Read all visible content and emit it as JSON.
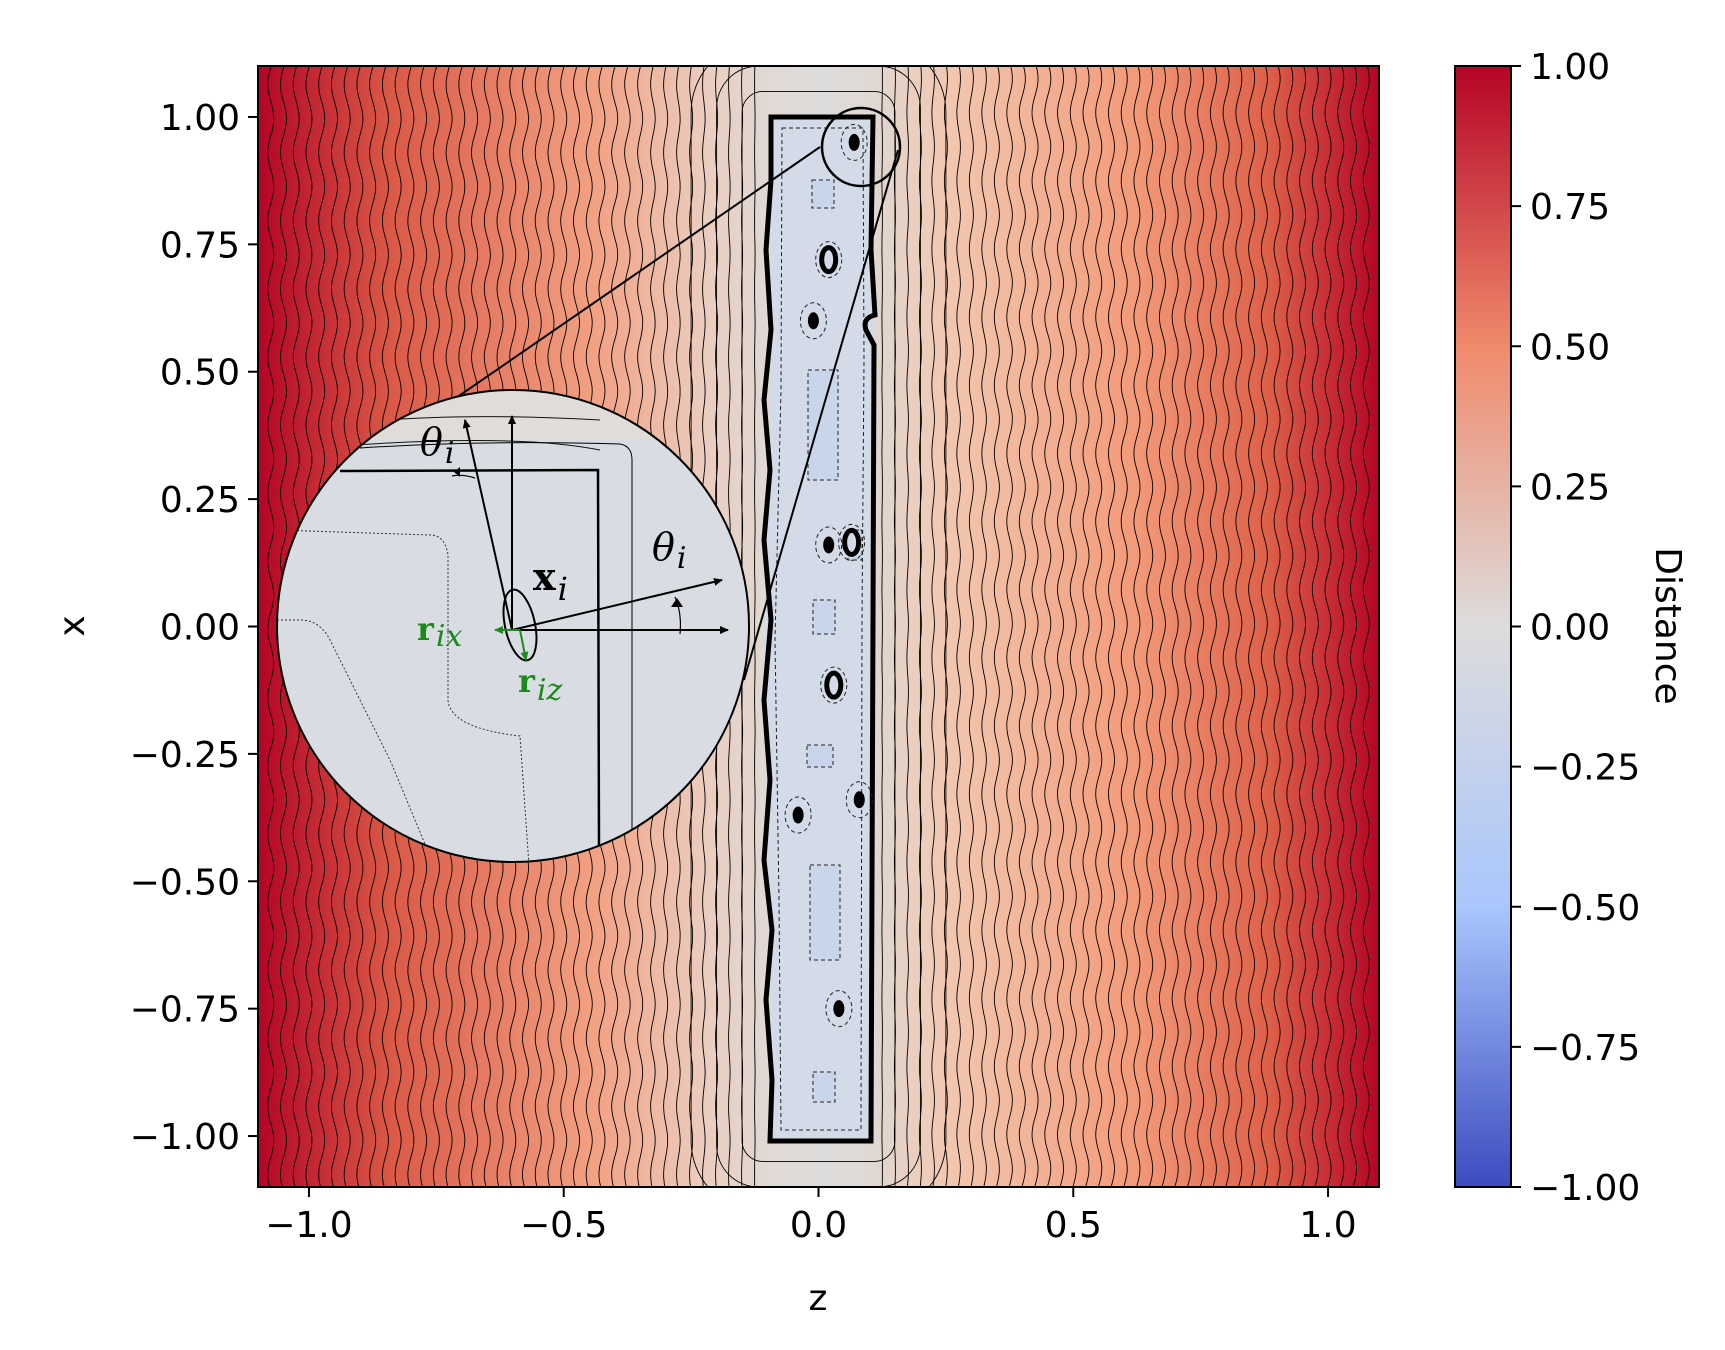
{
  "chart_data": {
    "type": "heatmap",
    "title": "",
    "xlabel": "z",
    "ylabel": "x",
    "xlim": [
      -1.1,
      1.1
    ],
    "ylim": [
      -1.1,
      1.1
    ],
    "xticks": [
      -1.0,
      -0.5,
      0.0,
      0.5,
      1.0
    ],
    "xtick_labels": [
      "−1.0",
      "−0.5",
      "0.0",
      "0.5",
      "1.0"
    ],
    "yticks": [
      1.0,
      0.75,
      0.5,
      0.25,
      0.0,
      -0.25,
      -0.5,
      -0.75,
      -1.0
    ],
    "ytick_labels": [
      "1.00",
      "0.75",
      "0.50",
      "0.25",
      "0.00",
      "−0.25",
      "−0.50",
      "−0.75",
      "−1.00"
    ],
    "field": "signed distance to rectangular slab |z| ≤ 0.1, |x| ≤ 1.0 with embedded voids",
    "contour_spacing": 0.025,
    "slab": {
      "z": [
        -0.1,
        0.1
      ],
      "x": [
        -1.0,
        1.0
      ]
    },
    "voids": [
      {
        "z": 0.07,
        "x": 0.95
      },
      {
        "z": 0.02,
        "x": 0.72
      },
      {
        "z": -0.01,
        "x": 0.6
      },
      {
        "z": 0.02,
        "x": 0.16
      },
      {
        "z": 0.065,
        "x": 0.165
      },
      {
        "z": 0.03,
        "x": -0.115
      },
      {
        "z": 0.08,
        "x": -0.34
      },
      {
        "z": -0.04,
        "x": -0.37
      },
      {
        "z": 0.04,
        "x": -0.75
      }
    ],
    "colorbar": {
      "label": "Distance",
      "cmap": "coolwarm",
      "range": [
        -1.0,
        1.0
      ],
      "ticks": [
        1.0,
        0.75,
        0.5,
        0.25,
        0.0,
        -0.25,
        -0.5,
        -0.75,
        -1.0
      ],
      "tick_labels": [
        "1.00",
        "0.75",
        "0.50",
        "0.25",
        "0.00",
        "−0.25",
        "−0.50",
        "−0.75",
        "−1.00"
      ],
      "colors": [
        "#b40426",
        "#f08a6c",
        "#dddcdc",
        "#a9c6fd",
        "#3b4cc0"
      ]
    },
    "inset": {
      "source_center": {
        "z": 0.08,
        "x": 0.94
      },
      "source_radius": 0.07,
      "annotations": {
        "theta_top": "θ",
        "theta_top_sub": "i",
        "theta_right": "θ",
        "theta_right_sub": "i",
        "x_vec": "x",
        "x_vec_sub": "i",
        "r_x": "r",
        "r_x_sub": "ix",
        "r_z": "r",
        "r_z_sub": "iz"
      },
      "green": "#1a8a1a"
    }
  }
}
